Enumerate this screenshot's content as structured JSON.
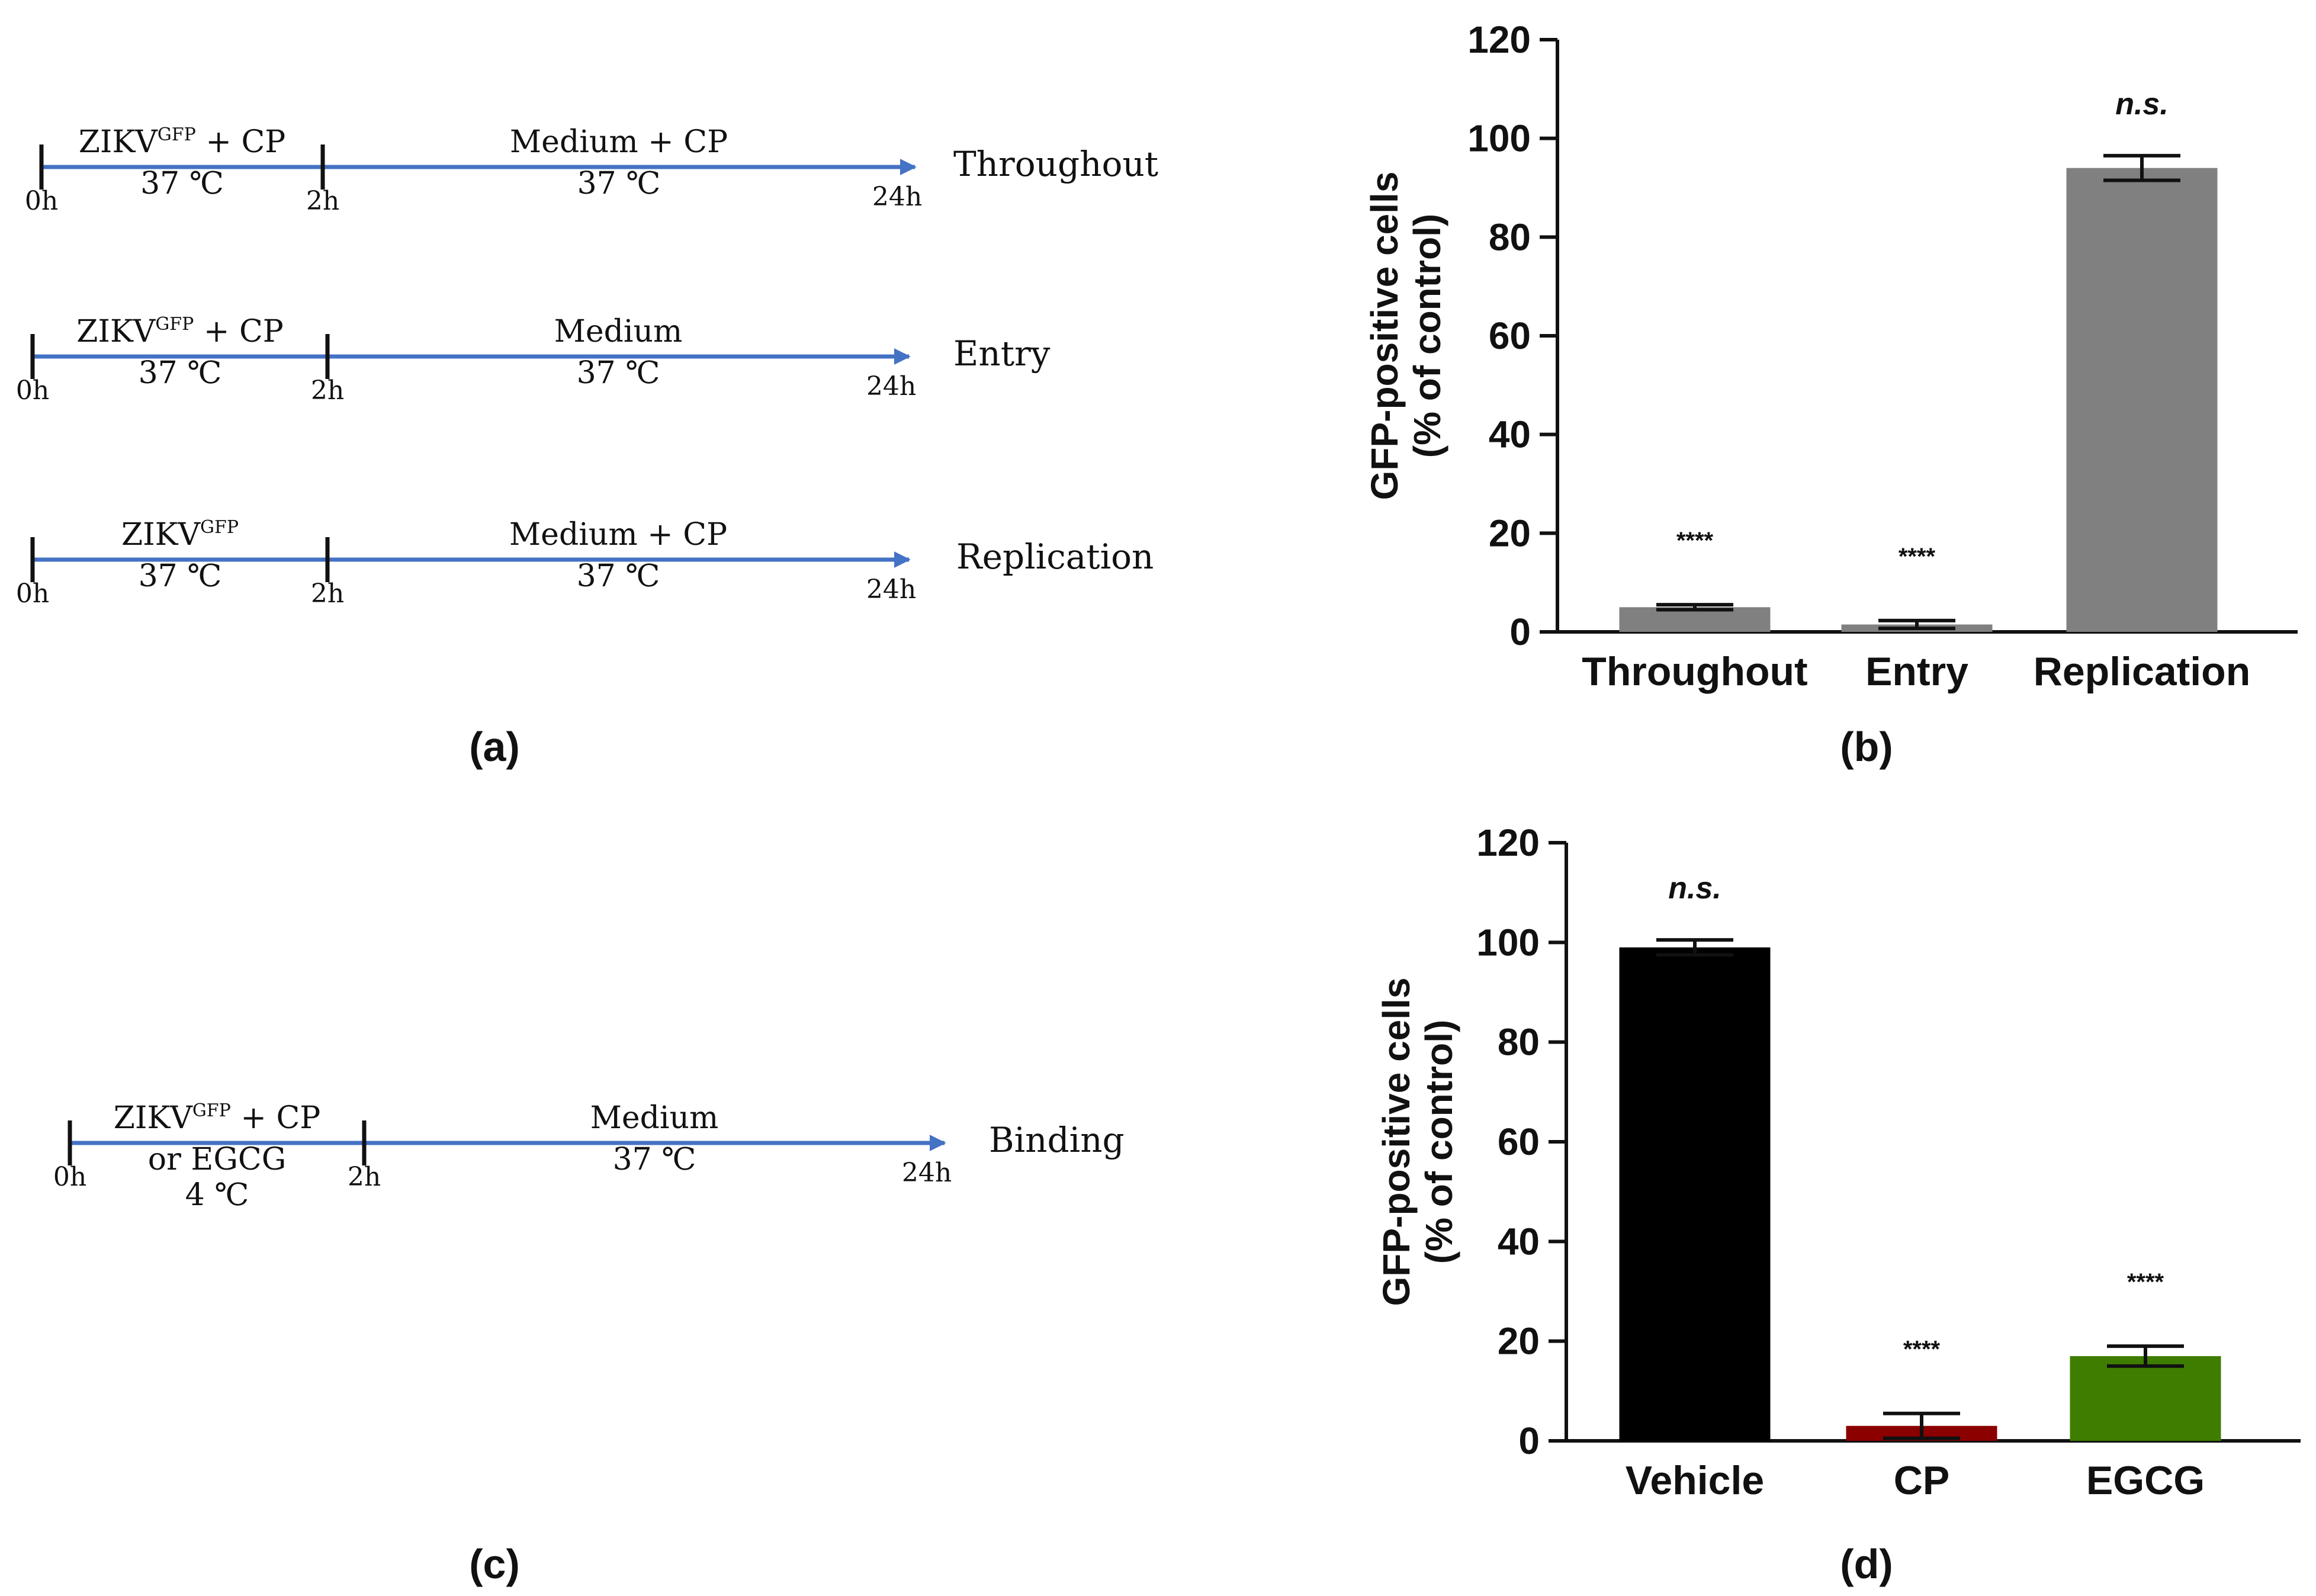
{
  "panel_labels": {
    "a": "(a)",
    "b": "(b)",
    "c": "(c)",
    "d": "(d)"
  },
  "arrow_color": "#4472C4",
  "protocols": [
    {
      "name": "Throughout",
      "phase1": {
        "agent_main": "ZIKV",
        "agent_sup": "GFP",
        "agent_suffix": " + CP",
        "agent_line2": "",
        "temp": "37 ℃"
      },
      "phase2": {
        "agent": "Medium + CP",
        "temp": "37 ℃"
      },
      "times": [
        "0h",
        "2h",
        "24h"
      ]
    },
    {
      "name": "Entry",
      "phase1": {
        "agent_main": "ZIKV",
        "agent_sup": "GFP",
        "agent_suffix": " + CP",
        "agent_line2": "",
        "temp": "37 ℃"
      },
      "phase2": {
        "agent": "Medium",
        "temp": "37 ℃"
      },
      "times": [
        "0h",
        "2h",
        "24h"
      ]
    },
    {
      "name": "Replication",
      "phase1": {
        "agent_main": "ZIKV",
        "agent_sup": "GFP",
        "agent_suffix": "",
        "agent_line2": "",
        "temp": "37 ℃"
      },
      "phase2": {
        "agent": "Medium + CP",
        "temp": "37 ℃"
      },
      "times": [
        "0h",
        "2h",
        "24h"
      ]
    },
    {
      "name": "Binding",
      "phase1": {
        "agent_main": "ZIKV",
        "agent_sup": "GFP",
        "agent_suffix": " + CP",
        "agent_line2": "or EGCG",
        "temp": "4 ℃"
      },
      "phase2": {
        "agent": "Medium",
        "temp": "37 ℃"
      },
      "times": [
        "0h",
        "2h",
        "24h"
      ]
    }
  ],
  "chart_data": [
    {
      "type": "bar",
      "panel": "(b)",
      "categories": [
        "Throughout",
        "Entry",
        "Replication"
      ],
      "values": [
        5,
        1.5,
        94
      ],
      "errors": [
        0.5,
        0.8,
        2.5
      ],
      "significance": [
        "****",
        "****",
        "n.s."
      ],
      "colors": [
        "#808080",
        "#808080",
        "#808080"
      ],
      "ylabel": "GFP-positive cells (% of control)",
      "ylabel_line1": "GFP-positive cells",
      "ylabel_line2": "(% of control)",
      "ylim": [
        0,
        120
      ],
      "yticks": [
        0,
        20,
        40,
        60,
        80,
        100,
        120
      ]
    },
    {
      "type": "bar",
      "panel": "(d)",
      "categories": [
        "Vehicle",
        "CP",
        "EGCG"
      ],
      "values": [
        99,
        3,
        17
      ],
      "errors": [
        1.5,
        2.5,
        2
      ],
      "significance": [
        "n.s.",
        "****",
        "****"
      ],
      "colors": [
        "#000000",
        "#8B0000",
        "#3E7D00"
      ],
      "ylabel": "GFP-positive cells (% of control)",
      "ylabel_line1": "GFP-positive cells",
      "ylabel_line2": "(% of control)",
      "ylim": [
        0,
        120
      ],
      "yticks": [
        0,
        20,
        40,
        60,
        80,
        100,
        120
      ]
    }
  ]
}
